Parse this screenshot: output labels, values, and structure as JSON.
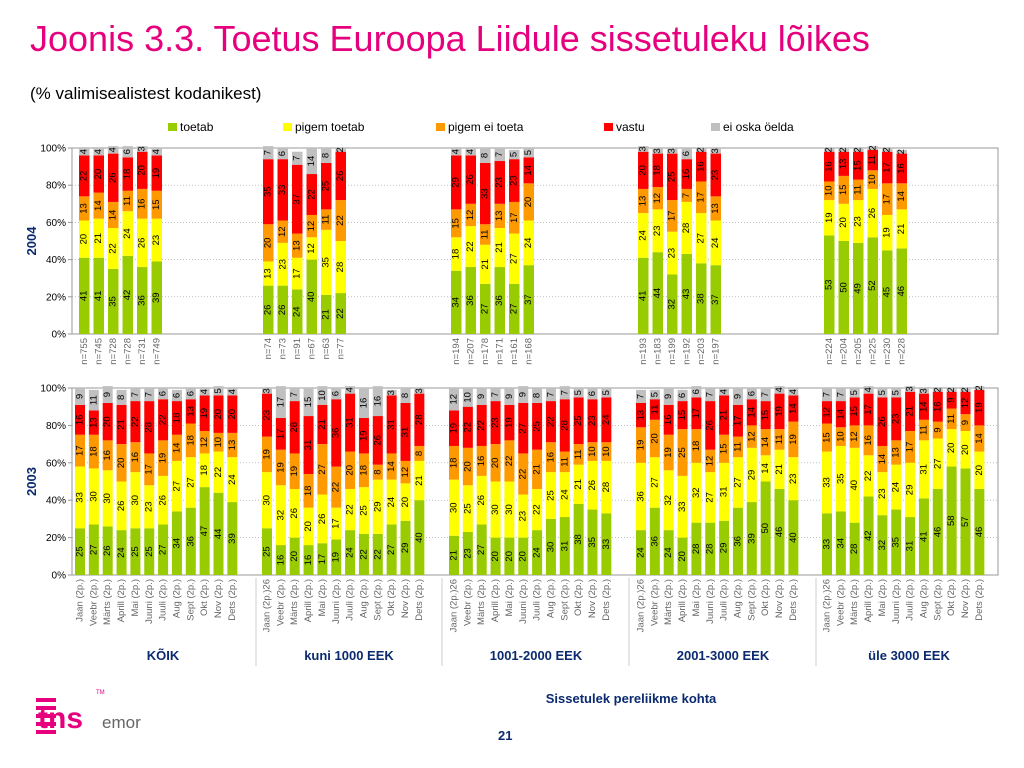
{
  "title": "Joonis 3.3. Toetus Euroopa Liidule sissetuleku lõikes",
  "subtitle": "(% valimisealistest kodanikest)",
  "x_axis_title": "Sissetulek pereliikme kohta",
  "slide_number": "21",
  "logo": {
    "text_main": "tns",
    "text_sub": "emor",
    "superscript": "TM",
    "accent_color": "#e6007e"
  },
  "chart_data": {
    "type": "bar",
    "stacked": true,
    "legend": {
      "placement": "top",
      "entries": [
        "toetab",
        "pigem toetab",
        "pigem ei toeta",
        "vastu",
        "ei oska öelda"
      ]
    },
    "colors": {
      "toetab": "#99cc00",
      "pigem toetab": "#ffff00",
      "pigem ei toeta": "#ff9900",
      "vastu": "#ff0000",
      "ei oska öelda": "#c0c0c0"
    },
    "ylim": [
      0,
      100
    ],
    "y_ticks": [
      "0%",
      "20%",
      "40%",
      "60%",
      "80%",
      "100%"
    ],
    "grid": true,
    "groups": [
      "KÕIK",
      "kuni 1000 EEK",
      "1001-2000 EEK",
      "2001-3000 EEK",
      "üle 3000 EEK"
    ],
    "panels": [
      {
        "ylabel": "2004",
        "group_bars": [
          [
            {
              "label": "n=755",
              "values": [
                41,
                20,
                13,
                22,
                4
              ]
            },
            {
              "label": "n=745",
              "values": [
                41,
                21,
                14,
                20,
                4
              ]
            },
            {
              "label": "n=728",
              "values": [
                35,
                22,
                14,
                26,
                4
              ]
            },
            {
              "label": "n=728",
              "values": [
                42,
                24,
                11,
                18,
                6
              ]
            },
            {
              "label": "n=731",
              "values": [
                36,
                26,
                16,
                20,
                3
              ]
            },
            {
              "label": "n=749",
              "values": [
                39,
                23,
                15,
                19,
                4
              ]
            }
          ],
          [
            {
              "label": "n=74",
              "values": [
                26,
                13,
                20,
                35,
                7
              ]
            },
            {
              "label": "n=73",
              "values": [
                26,
                23,
                12,
                33,
                6
              ]
            },
            {
              "label": "n=91",
              "values": [
                24,
                17,
                13,
                37,
                7
              ]
            },
            {
              "label": "n=67",
              "values": [
                40,
                12,
                12,
                22,
                14
              ]
            },
            {
              "label": "n=63",
              "values": [
                21,
                35,
                11,
                25,
                8
              ]
            },
            {
              "label": "n=77",
              "values": [
                22,
                28,
                22,
                26,
                2
              ]
            }
          ],
          [
            {
              "label": "n=194",
              "values": [
                34,
                18,
                15,
                29,
                4
              ]
            },
            {
              "label": "n=207",
              "values": [
                36,
                22,
                12,
                26,
                4
              ]
            },
            {
              "label": "n=178",
              "values": [
                27,
                21,
                11,
                33,
                8
              ]
            },
            {
              "label": "n=171",
              "values": [
                36,
                21,
                13,
                23,
                7
              ]
            },
            {
              "label": "n=161",
              "values": [
                27,
                27,
                17,
                23,
                5
              ]
            },
            {
              "label": "n=168",
              "values": [
                37,
                24,
                20,
                14,
                5
              ]
            }
          ],
          [
            {
              "label": "n=193",
              "values": [
                41,
                24,
                13,
                20,
                3
              ]
            },
            {
              "label": "n=183",
              "values": [
                44,
                23,
                12,
                18,
                3
              ]
            },
            {
              "label": "n=199",
              "values": [
                32,
                23,
                17,
                25,
                3
              ]
            },
            {
              "label": "n=192",
              "values": [
                43,
                28,
                7,
                16,
                6
              ]
            },
            {
              "label": "n=203",
              "values": [
                38,
                27,
                17,
                16,
                2
              ]
            },
            {
              "label": "n=197",
              "values": [
                37,
                24,
                13,
                23,
                3
              ]
            }
          ],
          [
            {
              "label": "n=224",
              "values": [
                53,
                19,
                10,
                16,
                2
              ]
            },
            {
              "label": "n=204",
              "values": [
                50,
                20,
                15,
                13,
                2
              ]
            },
            {
              "label": "n=205",
              "values": [
                49,
                23,
                11,
                15,
                2
              ]
            },
            {
              "label": "n=225",
              "values": [
                52,
                26,
                10,
                11,
                2
              ]
            },
            {
              "label": "n=230",
              "values": [
                45,
                19,
                17,
                17,
                2
              ]
            },
            {
              "label": "n=228",
              "values": [
                46,
                21,
                14,
                16,
                2
              ]
            }
          ]
        ]
      },
      {
        "ylabel": "2003",
        "group_bars": [
          [
            {
              "label": "Jaan (2p.)",
              "values": [
                25,
                33,
                17,
                16,
                9
              ]
            },
            {
              "label": "Veebr (2p.)",
              "values": [
                27,
                30,
                18,
                13,
                11
              ]
            },
            {
              "label": "Märts (2p.)",
              "values": [
                26,
                30,
                16,
                20,
                9
              ]
            },
            {
              "label": "Aprill (2p.)",
              "values": [
                24,
                26,
                20,
                21,
                8
              ]
            },
            {
              "label": "Mai (2p.)",
              "values": [
                25,
                30,
                16,
                22,
                7
              ]
            },
            {
              "label": "Juuni (2p.)",
              "values": [
                25,
                23,
                17,
                28,
                7
              ]
            },
            {
              "label": "Juuli (2p.)",
              "values": [
                27,
                26,
                19,
                22,
                6
              ]
            },
            {
              "label": "Aug (2p.)",
              "values": [
                34,
                27,
                14,
                18,
                6
              ]
            },
            {
              "label": "Sept (2p.)",
              "values": [
                36,
                27,
                18,
                13,
                6
              ]
            },
            {
              "label": "Okt (2p.)",
              "values": [
                47,
                18,
                12,
                19,
                4
              ]
            },
            {
              "label": "Nov (2p.)",
              "values": [
                44,
                22,
                10,
                20,
                5
              ]
            },
            {
              "label": "Dets (2p.)",
              "values": [
                39,
                24,
                13,
                20,
                4
              ]
            }
          ],
          [
            {
              "label": "Jaan (2p.)26",
              "values": [
                25,
                30,
                19,
                23,
                3
              ]
            },
            {
              "label": "Veebr (2p.)",
              "values": [
                16,
                32,
                19,
                17,
                17
              ]
            },
            {
              "label": "Märts (2p.)",
              "values": [
                20,
                26,
                19,
                28,
                7
              ]
            },
            {
              "label": "Aprill (2p.)",
              "values": [
                16,
                20,
                18,
                31,
                15
              ]
            },
            {
              "label": "Mai (2p.)",
              "values": [
                17,
                26,
                27,
                21,
                10
              ]
            },
            {
              "label": "Juuni (2p.)",
              "values": [
                19,
                17,
                22,
                36,
                6
              ]
            },
            {
              "label": "Juuli (2p.)",
              "values": [
                24,
                22,
                20,
                31,
                4
              ]
            },
            {
              "label": "Aug (2p.)",
              "values": [
                22,
                25,
                18,
                19,
                16
              ]
            },
            {
              "label": "Sept (2p.)",
              "values": [
                22,
                29,
                8,
                26,
                16
              ]
            },
            {
              "label": "Okt (2p.)",
              "values": [
                27,
                24,
                14,
                31,
                3
              ]
            },
            {
              "label": "Nov (2p.)",
              "values": [
                29,
                20,
                12,
                31,
                8
              ]
            },
            {
              "label": "Dets (2p.)",
              "values": [
                40,
                21,
                8,
                28,
                3
              ]
            }
          ],
          [
            {
              "label": "Jaan (2p.)26",
              "values": [
                21,
                30,
                18,
                19,
                12
              ]
            },
            {
              "label": "Veebr (2p.)",
              "values": [
                23,
                25,
                20,
                22,
                10
              ]
            },
            {
              "label": "Märts (2p.)",
              "values": [
                27,
                26,
                16,
                22,
                9
              ]
            },
            {
              "label": "Aprill (2p.)",
              "values": [
                20,
                30,
                20,
                23,
                7
              ]
            },
            {
              "label": "Mai (2p.)",
              "values": [
                20,
                30,
                22,
                19,
                9
              ]
            },
            {
              "label": "Juuni (2p.)",
              "values": [
                20,
                23,
                22,
                27,
                9
              ]
            },
            {
              "label": "Juuli (2p.)",
              "values": [
                24,
                22,
                21,
                25,
                8
              ]
            },
            {
              "label": "Aug (2p.)",
              "values": [
                30,
                25,
                16,
                22,
                7
              ]
            },
            {
              "label": "Sept (2p.)",
              "values": [
                31,
                24,
                11,
                28,
                7
              ]
            },
            {
              "label": "Okt (2p.)",
              "values": [
                38,
                21,
                11,
                25,
                5
              ]
            },
            {
              "label": "Nov (2p.)",
              "values": [
                35,
                26,
                10,
                23,
                6
              ]
            },
            {
              "label": "Dets (2p.)",
              "values": [
                33,
                28,
                10,
                24,
                5
              ]
            }
          ],
          [
            {
              "label": "Jaan (2p.)26",
              "values": [
                24,
                36,
                19,
                13,
                7
              ]
            },
            {
              "label": "Veebr (2p.)",
              "values": [
                36,
                27,
                20,
                11,
                5
              ]
            },
            {
              "label": "Märts (2p.)",
              "values": [
                24,
                32,
                19,
                16,
                9
              ]
            },
            {
              "label": "Aprill (2p.)",
              "values": [
                20,
                33,
                25,
                15,
                6
              ]
            },
            {
              "label": "Mai (2p.)",
              "values": [
                28,
                32,
                18,
                17,
                6
              ]
            },
            {
              "label": "Juuni (2p.)",
              "values": [
                28,
                27,
                12,
                26,
                7
              ]
            },
            {
              "label": "Juuli (2p.)",
              "values": [
                29,
                31,
                15,
                21,
                4
              ]
            },
            {
              "label": "Aug (2p.)",
              "values": [
                36,
                27,
                11,
                17,
                9
              ]
            },
            {
              "label": "Sept (2p.)",
              "values": [
                39,
                29,
                12,
                14,
                6
              ]
            },
            {
              "label": "Okt (2p.)",
              "values": [
                50,
                14,
                14,
                15,
                7
              ]
            },
            {
              "label": "Nov (2p.)",
              "values": [
                46,
                21,
                11,
                19,
                4
              ]
            },
            {
              "label": "Dets (2p.)",
              "values": [
                40,
                23,
                19,
                14,
                4
              ]
            }
          ],
          [
            {
              "label": "Jaan (2p.)26",
              "values": [
                33,
                33,
                15,
                12,
                7
              ]
            },
            {
              "label": "Veebr (2p.)",
              "values": [
                34,
                35,
                10,
                14,
                7
              ]
            },
            {
              "label": "Märts (2p.)",
              "values": [
                28,
                40,
                12,
                15,
                5
              ]
            },
            {
              "label": "Aprill (2p.)",
              "values": [
                42,
                22,
                16,
                17,
                4
              ]
            },
            {
              "label": "Mai (2p.)",
              "values": [
                32,
                23,
                14,
                26,
                5
              ]
            },
            {
              "label": "Juuni (2p.)",
              "values": [
                35,
                24,
                13,
                23,
                5
              ]
            },
            {
              "label": "Juuli (2p.)",
              "values": [
                31,
                29,
                17,
                21,
                3
              ]
            },
            {
              "label": "Aug (2p.)",
              "values": [
                41,
                31,
                11,
                14,
                3
              ]
            },
            {
              "label": "Sept (2p.)",
              "values": [
                46,
                27,
                9,
                16,
                2
              ]
            },
            {
              "label": "Okt (2p.)",
              "values": [
                58,
                20,
                11,
                9,
                2
              ]
            },
            {
              "label": "Nov (2p.)",
              "values": [
                57,
                20,
                9,
                12,
                2
              ]
            },
            {
              "label": "Dets (2p.)",
              "values": [
                46,
                20,
                14,
                19,
                2
              ]
            }
          ]
        ]
      }
    ]
  }
}
